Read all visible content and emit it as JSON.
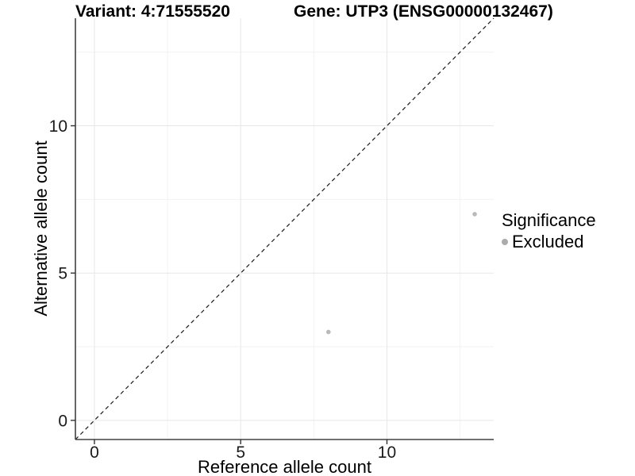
{
  "chart_data": {
    "type": "scatter",
    "title_left": "Variant: 4:71555520",
    "title_right": "Gene: UTP3 (ENSG00000132467)",
    "xlabel": "Reference allele count",
    "ylabel": "Alternative allele count",
    "xlim": [
      -0.65,
      13.65
    ],
    "ylim": [
      -0.65,
      13.65
    ],
    "x_ticks": [
      0,
      5,
      10
    ],
    "x_tick_labels": [
      "0",
      "5",
      "10"
    ],
    "y_ticks": [
      0,
      5,
      10
    ],
    "y_tick_labels": [
      "0",
      "5",
      "10"
    ],
    "x_minor_ticks": [
      2.5,
      7.5,
      12.5
    ],
    "y_minor_ticks": [
      2.5,
      7.5,
      12.5
    ],
    "grid": true,
    "identity_line": {
      "style": "dashed",
      "from": [
        -0.65,
        -0.65
      ],
      "to": [
        13.65,
        13.65
      ]
    },
    "series": [
      {
        "name": "Excluded",
        "points": [
          [
            8,
            3
          ],
          [
            13,
            7
          ]
        ]
      }
    ],
    "legend": {
      "title": "Significance",
      "position": "right",
      "items": [
        {
          "label": "Excluded",
          "color": "#b9b9b9"
        }
      ]
    },
    "colors": {
      "point": "#b9b9b9",
      "legend_dot": "#acacac",
      "axis_line": "#404040",
      "tick_mark": "#333333",
      "tick_label": "#1a1a1a",
      "grid_major": "#e7e7e7",
      "grid_minor": "#f2f2f2",
      "identity_line": "#1a1a1a",
      "background": "#ffffff"
    }
  }
}
